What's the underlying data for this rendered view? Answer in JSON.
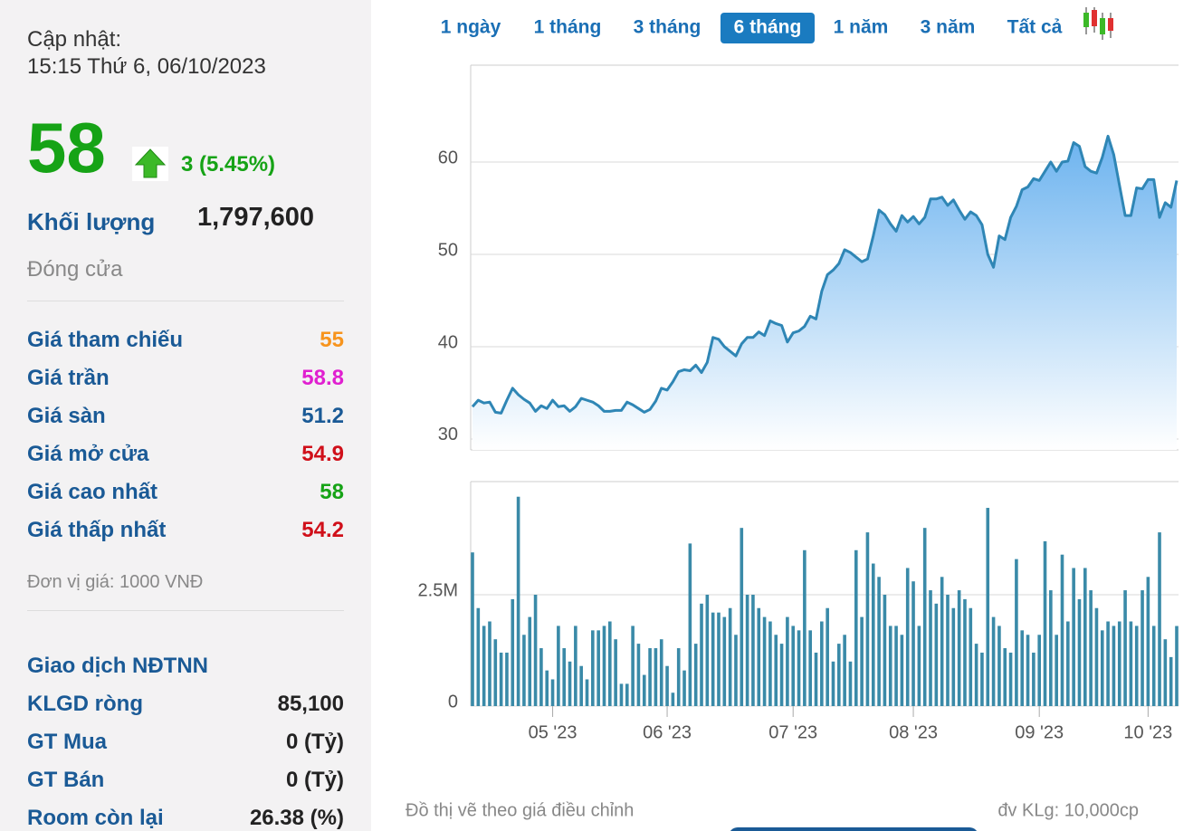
{
  "sidebar": {
    "update_label": "Cập nhật:",
    "update_time": "15:15 Thứ 6, 06/10/2023",
    "price": 58,
    "change": "3 (5.45%)",
    "volume_label": "Khối lượng",
    "volume": "1,797,600",
    "close_label": "Đóng cửa",
    "stats": [
      {
        "label": "Giá tham chiếu",
        "value": 55,
        "color": "#f7941d"
      },
      {
        "label": "Giá trần",
        "value": 58.8,
        "color": "#e020d0"
      },
      {
        "label": "Giá sàn",
        "value": 51.2,
        "color": "#1a5a96"
      },
      {
        "label": "Giá mở cửa",
        "value": 54.9,
        "color": "#d0101a"
      },
      {
        "label": "Giá cao nhất",
        "value": 58,
        "color": "#16a316"
      },
      {
        "label": "Giá thấp nhất",
        "value": 54.2,
        "color": "#d0101a"
      }
    ],
    "unit_note": "Đơn vị giá: 1000 VNĐ",
    "foreign_title": "Giao dịch NĐTNN",
    "foreign_rows": [
      {
        "label": "KLGD ròng",
        "value": "85,100"
      },
      {
        "label": "GT Mua",
        "value": "0 (Tỷ)"
      },
      {
        "label": "GT Bán",
        "value": "0 (Tỷ)"
      },
      {
        "label": "Room còn lại",
        "value": "26.38 (%)"
      }
    ]
  },
  "tabs": {
    "items": [
      "1 ngày",
      "1 tháng",
      "3 tháng",
      "6 tháng",
      "1 năm",
      "3 năm",
      "Tất cả"
    ],
    "active": 3
  },
  "footer": {
    "left": "Đồ thị vẽ theo giá điều chỉnh",
    "right": "đv KLg: 10,000cp"
  },
  "chart_data": [
    {
      "type": "area",
      "color": "#2f86b5",
      "ylim": [
        28.82,
        70.49
      ],
      "yticks": [
        30,
        40,
        50,
        60
      ],
      "grid": true,
      "values": [
        33.5,
        34.2,
        33.9,
        34.0,
        32.9,
        32.8,
        34.2,
        35.5,
        34.8,
        34.3,
        33.9,
        33.0,
        33.6,
        33.3,
        34.2,
        33.5,
        33.6,
        33.0,
        33.5,
        34.4,
        34.2,
        34.0,
        33.6,
        33.0,
        33.0,
        33.1,
        33.1,
        34.0,
        33.7,
        33.3,
        32.9,
        33.2,
        34.1,
        35.5,
        35.3,
        36.2,
        37.3,
        37.5,
        37.4,
        38.0,
        37.2,
        38.3,
        41.0,
        40.8,
        40.0,
        39.5,
        39.0,
        40.3,
        41.0,
        41.0,
        41.6,
        41.2,
        42.8,
        42.5,
        42.3,
        40.5,
        41.5,
        41.7,
        42.2,
        43.3,
        43.0,
        46.0,
        47.8,
        48.3,
        49.0,
        50.5,
        50.2,
        49.7,
        49.2,
        49.5,
        52.0,
        54.8,
        54.3,
        53.3,
        52.5,
        54.2,
        53.5,
        54.1,
        53.3,
        54.0,
        56.0,
        56.0,
        56.2,
        55.3,
        55.9,
        54.8,
        53.8,
        54.6,
        54.2,
        53.2,
        50.0,
        48.6,
        52.0,
        51.6,
        54.0,
        55.2,
        57.0,
        57.3,
        58.2,
        58.0,
        59.0,
        60.0,
        59.0,
        60.0,
        60.1,
        62.1,
        61.7,
        59.5,
        59.0,
        58.8,
        60.5,
        62.8,
        60.8,
        57.5,
        54.2,
        54.2,
        57.2,
        57.1,
        58.1,
        58.1,
        54.0,
        55.6,
        55.1,
        58.0
      ]
    },
    {
      "type": "bar",
      "color": "#3a8aa8",
      "ylim": [
        0,
        5040000
      ],
      "yticks": [
        {
          "value": 2500000,
          "label": "2.5M"
        },
        0
      ],
      "grid": true,
      "categories": [
        null,
        null,
        null,
        null,
        null,
        null,
        null,
        null,
        null,
        null,
        null,
        null,
        null,
        null,
        "05 '23",
        null,
        null,
        null,
        null,
        null,
        null,
        null,
        null,
        null,
        null,
        null,
        null,
        null,
        null,
        null,
        null,
        null,
        null,
        null,
        "06 '23",
        null,
        null,
        null,
        null,
        null,
        null,
        null,
        null,
        null,
        null,
        null,
        null,
        null,
        null,
        null,
        null,
        null,
        null,
        null,
        null,
        null,
        "07 '23",
        null,
        null,
        null,
        null,
        null,
        null,
        null,
        null,
        null,
        null,
        null,
        null,
        null,
        null,
        null,
        null,
        null,
        null,
        null,
        null,
        "08 '23",
        null,
        null,
        null,
        null,
        null,
        null,
        null,
        null,
        null,
        null,
        null,
        null,
        null,
        null,
        null,
        null,
        null,
        null,
        null,
        null,
        null,
        "09 '23",
        null,
        null,
        null,
        null,
        null,
        null,
        null,
        null,
        null,
        null,
        null,
        null,
        null,
        null,
        null,
        null,
        null,
        null,
        "10 '23",
        null,
        null,
        null,
        null,
        null
      ],
      "values": [
        3450000,
        2200000,
        1800000,
        1900000,
        1500000,
        1200000,
        1200000,
        2400000,
        4700000,
        1600000,
        2000000,
        2500000,
        1300000,
        800000,
        600000,
        1800000,
        1300000,
        1000000,
        1800000,
        900000,
        600000,
        1700000,
        1700000,
        1800000,
        1900000,
        1500000,
        500000,
        500000,
        1800000,
        1400000,
        700000,
        1300000,
        1300000,
        1500000,
        900000,
        300000,
        1300000,
        800000,
        3650000,
        1400000,
        2300000,
        2500000,
        2100000,
        2100000,
        2000000,
        2200000,
        1600000,
        4000000,
        2500000,
        2500000,
        2200000,
        2000000,
        1900000,
        1600000,
        1400000,
        2000000,
        1800000,
        1700000,
        3500000,
        1700000,
        1200000,
        1900000,
        2200000,
        1000000,
        1400000,
        1600000,
        1000000,
        3500000,
        2000000,
        3900000,
        3200000,
        2900000,
        2500000,
        1800000,
        1800000,
        1600000,
        3100000,
        2800000,
        1800000,
        4000000,
        2600000,
        2300000,
        2900000,
        2500000,
        2200000,
        2600000,
        2400000,
        2200000,
        1400000,
        1200000,
        4450000,
        2000000,
        1800000,
        1300000,
        1200000,
        3300000,
        1700000,
        1600000,
        1200000,
        1600000,
        3700000,
        2600000,
        1600000,
        3400000,
        1900000,
        3100000,
        2400000,
        3100000,
        2600000,
        2200000,
        1700000,
        1900000,
        1800000,
        1900000,
        2600000,
        1900000,
        1800000,
        2600000,
        2900000,
        1800000,
        3900000,
        1500000,
        1100000,
        1797600
      ]
    }
  ]
}
